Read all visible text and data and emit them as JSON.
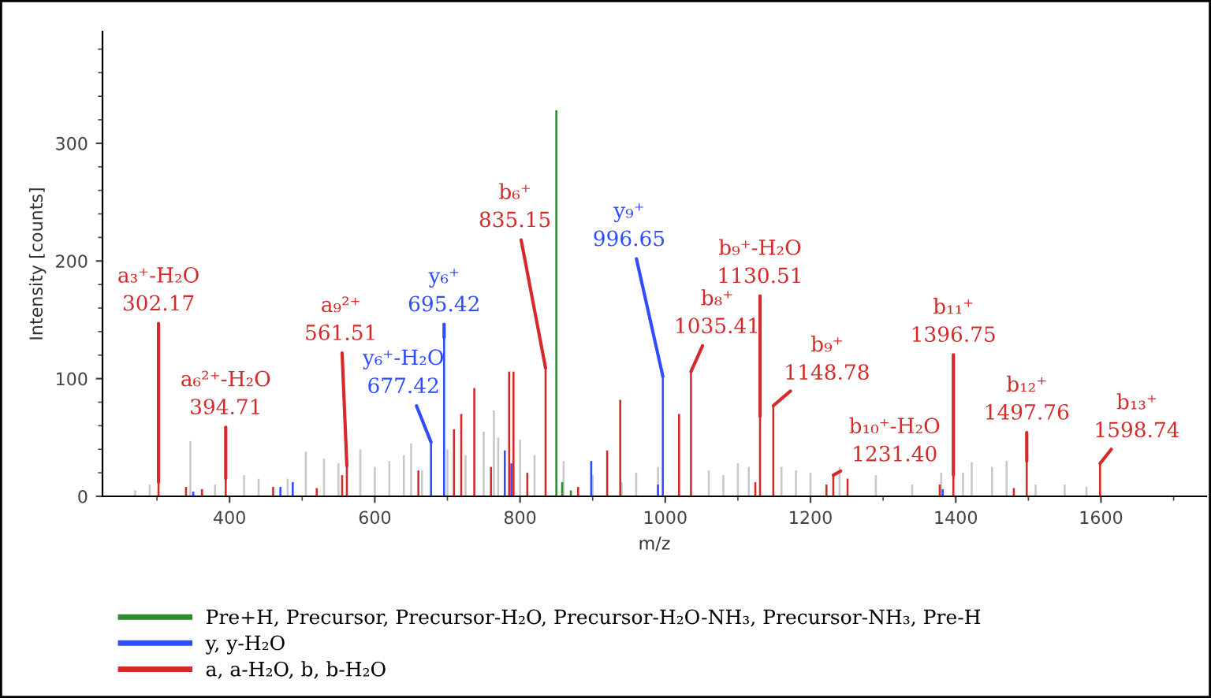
{
  "chart_data": {
    "type": "bar",
    "xlabel": "m/z",
    "ylabel": "Intensity [counts]",
    "xlim": [
      225,
      1745
    ],
    "ylim": [
      0,
      395
    ],
    "xticks": [
      {
        "value": 300,
        "label": null
      },
      400,
      {
        "value": 500,
        "label": null
      },
      600,
      {
        "value": 700,
        "label": null
      },
      800,
      {
        "value": 900,
        "label": null
      },
      1000,
      {
        "value": 1100,
        "label": null
      },
      1200,
      {
        "value": 1300,
        "label": null
      },
      1400,
      {
        "value": 1500,
        "label": null
      },
      1600,
      {
        "value": 1700,
        "label": null
      }
    ],
    "yticks": [
      0,
      {
        "value": 20,
        "label": null
      },
      {
        "value": 40,
        "label": null
      },
      {
        "value": 60,
        "label": null
      },
      {
        "value": 80,
        "label": null
      },
      100,
      {
        "value": 120,
        "label": null
      },
      {
        "value": 140,
        "label": null
      },
      {
        "value": 160,
        "label": null
      },
      {
        "value": 180,
        "label": null
      },
      200,
      {
        "value": 220,
        "label": null
      },
      {
        "value": 240,
        "label": null
      },
      {
        "value": 260,
        "label": null
      },
      {
        "value": 280,
        "label": null
      },
      300,
      {
        "value": 320,
        "label": null
      },
      {
        "value": 340,
        "label": null
      },
      {
        "value": 360,
        "label": null
      },
      {
        "value": 380,
        "label": null
      }
    ],
    "legend": "bottom",
    "grid": false,
    "series": [
      {
        "color": "#c8c8c8",
        "x": [
          270,
          290,
          346,
          380,
          420,
          440,
          480,
          505,
          530,
          550,
          580,
          600,
          620,
          640,
          650,
          665,
          700,
          725,
          750,
          764,
          770,
          800,
          820,
          860,
          900,
          940,
          960,
          990,
          1060,
          1080,
          1100,
          1115,
          1160,
          1180,
          1200,
          1240,
          1290,
          1340,
          1380,
          1410,
          1422,
          1450,
          1470,
          1510,
          1550,
          1580
        ],
        "values": [
          5,
          10,
          47,
          10,
          18,
          15,
          15,
          38,
          32,
          28,
          40,
          25,
          30,
          35,
          45,
          22,
          40,
          35,
          55,
          73,
          50,
          48,
          35,
          30,
          18,
          12,
          20,
          25,
          22,
          18,
          28,
          25,
          25,
          22,
          20,
          25,
          18,
          10,
          20,
          20,
          29,
          25,
          30,
          10,
          10,
          8
        ]
      },
      {
        "name": "Pre+H, Precursor, Precursor-H₂O, Precursor-H₂O-NH₃, Precursor-NH₃, Pre-H",
        "color": "#2e8b2e",
        "x": [
          850,
          858,
          870
        ],
        "values": [
          328,
          12,
          5
        ]
      },
      {
        "name": "y, y-H₂O",
        "color": "#2f4dff",
        "x": [
          350,
          470,
          487,
          677.42,
          695.42,
          779,
          788,
          898,
          990,
          996.65,
          1382
        ],
        "values": [
          4,
          8,
          12,
          46,
          135,
          39,
          28,
          30,
          10,
          102,
          6
        ]
      },
      {
        "name": "a, a-H₂O, b, b-H₂O",
        "color": "#d42a2a",
        "x": [
          302.17,
          340,
          362,
          394.71,
          460,
          520,
          555,
          561.51,
          660,
          709,
          719,
          737,
          760,
          785,
          791,
          810,
          835.15,
          880,
          920,
          938,
          1019,
          1035.41,
          1124,
          1130.51,
          1148.78,
          1222,
          1231.4,
          1251,
          1378,
          1396.75,
          1480,
          1497.76,
          1598.74
        ],
        "values": [
          12,
          8,
          6,
          15,
          8,
          7,
          18,
          26,
          22,
          57,
          70,
          92,
          25,
          106,
          106,
          20,
          109,
          8,
          39,
          82,
          70,
          106,
          12,
          68,
          77,
          10,
          18,
          15,
          10,
          18,
          7,
          30,
          28
        ]
      }
    ],
    "annotations": [
      {
        "text": "a₃⁺-H₂O\n302.17",
        "x": 302.17,
        "y": 12
      },
      {
        "text": "a₆²⁺-H₂O\n394.71",
        "x": 394.71,
        "y": 15
      },
      {
        "text": "a₉²⁺\n561.51",
        "x": 561.51,
        "y": 26
      },
      {
        "text": "y₆⁺-H₂O\n677.42",
        "x": 677.42,
        "y": 46
      },
      {
        "text": "y₆⁺\n695.42",
        "x": 695.42,
        "y": 135
      },
      {
        "text": "b₆⁺\n835.15",
        "x": 835.15,
        "y": 109
      },
      {
        "text": "y₉⁺\n996.65",
        "x": 996.65,
        "y": 102
      },
      {
        "text": "b₈⁺\n1035.41",
        "x": 1035.41,
        "y": 106
      },
      {
        "text": "b₉⁺-H₂O\n1130.51",
        "x": 1130.51,
        "y": 68
      },
      {
        "text": "b₉⁺\n1148.78",
        "x": 1148.78,
        "y": 77
      },
      {
        "text": "b₁₀⁺-H₂O\n1231.40",
        "x": 1231.4,
        "y": 18
      },
      {
        "text": "b₁₁⁺\n1396.75",
        "x": 1396.75,
        "y": 18
      },
      {
        "text": "b₁₂⁺\n1497.76",
        "x": 1497.76,
        "y": 30
      },
      {
        "text": "b₁₃⁺\n1598.74",
        "x": 1598.74,
        "y": 28
      }
    ]
  }
}
